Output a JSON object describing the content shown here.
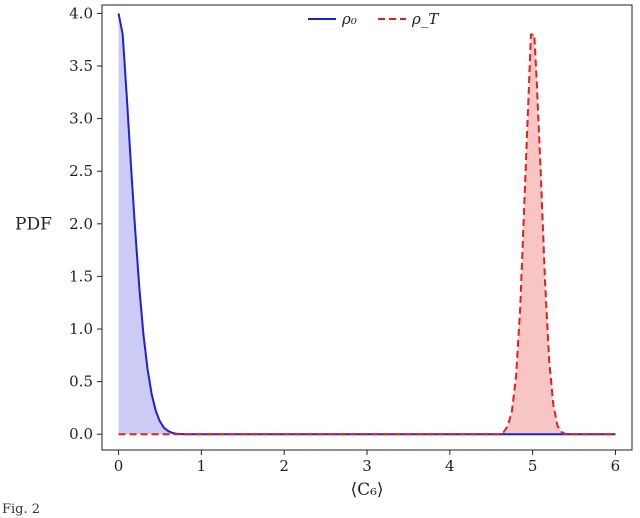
{
  "chart_data": {
    "type": "line",
    "xlabel": "⟨C₆⟩",
    "ylabel": "PDF",
    "xlim": [
      -0.2,
      6.2
    ],
    "ylim": [
      -0.15,
      4.08
    ],
    "xticks": [
      0,
      1,
      2,
      3,
      4,
      5,
      6
    ],
    "yticks": [
      0.0,
      0.5,
      1.0,
      1.5,
      2.0,
      2.5,
      3.0,
      3.5,
      4.0
    ],
    "legend_position": "top-center",
    "grid": false,
    "series": [
      {
        "name": "ρ₀",
        "color": "#1f1fd6",
        "fill": "#c8c8f5",
        "style": "solid",
        "x": [
          0,
          0.05,
          0.1,
          0.15,
          0.2,
          0.25,
          0.3,
          0.35,
          0.4,
          0.45,
          0.5,
          0.55,
          0.6,
          0.65,
          0.7,
          0.8,
          1.0,
          6.0
        ],
        "y": [
          4.0,
          3.8,
          3.2,
          2.55,
          1.95,
          1.4,
          0.95,
          0.62,
          0.38,
          0.22,
          0.12,
          0.06,
          0.03,
          0.012,
          0.005,
          0.0,
          0.0,
          0.0
        ]
      },
      {
        "name": "ρ_T",
        "color": "#e0201c",
        "fill": "#f8c2c2",
        "style": "dashed",
        "x": [
          0,
          4.6,
          4.65,
          4.7,
          4.75,
          4.8,
          4.85,
          4.9,
          4.95,
          4.98,
          5.0,
          5.02,
          5.05,
          5.1,
          5.15,
          5.2,
          5.25,
          5.3,
          5.35,
          5.4,
          6.0
        ],
        "y": [
          0.0,
          0.0,
          0.02,
          0.08,
          0.22,
          0.55,
          1.2,
          2.2,
          3.2,
          3.8,
          3.8,
          3.8,
          3.35,
          2.45,
          1.45,
          0.7,
          0.28,
          0.08,
          0.02,
          0.0,
          0.0
        ]
      }
    ]
  },
  "caption": "Fig. 2"
}
